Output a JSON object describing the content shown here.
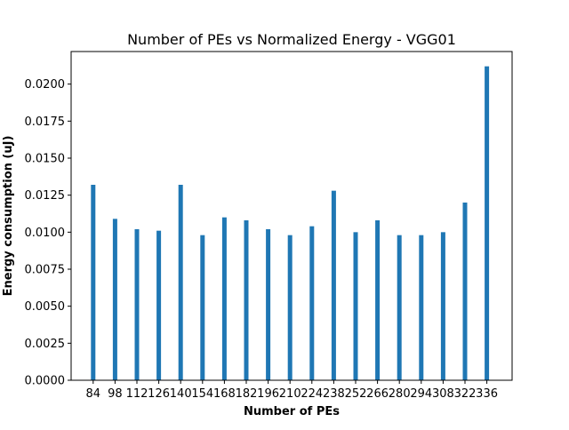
{
  "chart_data": {
    "type": "bar",
    "title": "Number of PEs vs Normalized Energy - VGG01",
    "xlabel": "Number of PEs",
    "ylabel": "Energy consumption (uJ)",
    "categories": [
      "84",
      "98",
      "112",
      "126",
      "140",
      "154",
      "168",
      "182",
      "196",
      "210",
      "224",
      "238",
      "252",
      "266",
      "280",
      "294",
      "308",
      "322",
      "336"
    ],
    "values": [
      0.0132,
      0.0109,
      0.0102,
      0.0101,
      0.0132,
      0.0098,
      0.011,
      0.0108,
      0.0102,
      0.0098,
      0.0104,
      0.0128,
      0.01,
      0.0108,
      0.0098,
      0.0098,
      0.01,
      0.012,
      0.0212
    ],
    "ylim": [
      0,
      0.0222
    ],
    "yticks": [
      "0.0000",
      "0.0025",
      "0.0050",
      "0.0075",
      "0.0100",
      "0.0125",
      "0.0150",
      "0.0175",
      "0.0200"
    ],
    "bar_color": "#1f77b4",
    "grid": false,
    "legend": "none"
  }
}
